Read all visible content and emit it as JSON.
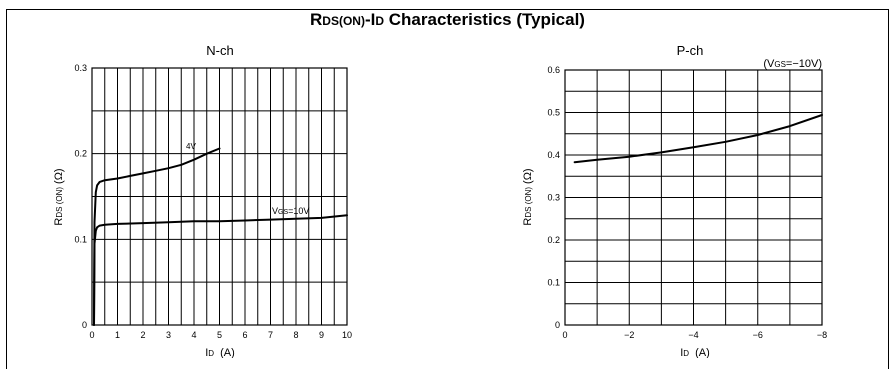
{
  "page": {
    "title_main": "R",
    "title_sub": "DS(ON)",
    "title_mid": "-I",
    "title_sub2": "D",
    "title_rest": " Characteristics (Typical)"
  },
  "chart_data": [
    {
      "type": "line",
      "title": "N-ch",
      "xlabel_main": "I",
      "xlabel_sub": "D",
      "xlabel_unit": "(A)",
      "ylabel_main": "R",
      "ylabel_sub": "DS (ON)",
      "ylabel_unit": "(Ω)",
      "xlim": [
        0,
        10
      ],
      "ylim": [
        0,
        0.3
      ],
      "x_ticks": [
        0,
        1,
        2,
        3,
        4,
        5,
        6,
        7,
        8,
        9,
        10
      ],
      "x_tick_labels": [
        "0",
        "1",
        "2",
        "3",
        "4",
        "5",
        "6",
        "7",
        "8",
        "9",
        "10"
      ],
      "y_ticks": [
        0,
        0.1,
        0.2,
        0.3
      ],
      "y_tick_labels": [
        "0",
        "0.1",
        "0.2",
        "0.3"
      ],
      "grid": true,
      "series": [
        {
          "name": "4V",
          "x": [
            0.08,
            0.1,
            0.15,
            0.2,
            0.3,
            0.5,
            1,
            1.5,
            2,
            2.5,
            3,
            3.5,
            4,
            4.5,
            5
          ],
          "values": [
            0.0,
            0.12,
            0.155,
            0.163,
            0.167,
            0.169,
            0.171,
            0.174,
            0.177,
            0.18,
            0.183,
            0.187,
            0.193,
            0.2,
            0.206
          ]
        },
        {
          "name": "VGS=10V",
          "x": [
            0.08,
            0.1,
            0.15,
            0.2,
            0.3,
            0.5,
            1,
            2,
            3,
            4,
            5,
            6,
            7,
            8,
            9,
            10
          ],
          "values": [
            0.0,
            0.095,
            0.11,
            0.114,
            0.116,
            0.117,
            0.118,
            0.119,
            0.12,
            0.121,
            0.121,
            0.122,
            0.123,
            0.124,
            0.125,
            0.128
          ]
        }
      ],
      "annotations": {
        "label_4v": "4V",
        "label_vgs_main": "V",
        "label_vgs_sub": "GS",
        "label_vgs_rest": "=10V"
      }
    },
    {
      "type": "line",
      "title": "P-ch",
      "xlabel_main": "I",
      "xlabel_sub": "D",
      "xlabel_unit": "(A)",
      "ylabel_main": "R",
      "ylabel_sub": "DS (ON)",
      "ylabel_unit": "(Ω)",
      "xlim": [
        0,
        -8
      ],
      "ylim": [
        0,
        0.6
      ],
      "x_ticks": [
        0,
        -2,
        -4,
        -6,
        -8
      ],
      "x_tick_labels": [
        "0",
        "−2",
        "−4",
        "−6",
        "−8"
      ],
      "y_ticks": [
        0,
        0.1,
        0.2,
        0.3,
        0.4,
        0.5,
        0.6
      ],
      "y_tick_labels": [
        "0",
        "0.1",
        "0.2",
        "0.3",
        "0.4",
        "0.5",
        "0.6"
      ],
      "grid": true,
      "series": [
        {
          "name": "",
          "x": [
            -0.3,
            -1,
            -2,
            -3,
            -4,
            -5,
            -6,
            -7,
            -8
          ],
          "values": [
            0.383,
            0.389,
            0.396,
            0.406,
            0.418,
            0.431,
            0.447,
            0.468,
            0.494
          ]
        }
      ],
      "annotations": {
        "cond_main": "(V",
        "cond_sub": "GS",
        "cond_rest": "=−10V)"
      }
    }
  ]
}
